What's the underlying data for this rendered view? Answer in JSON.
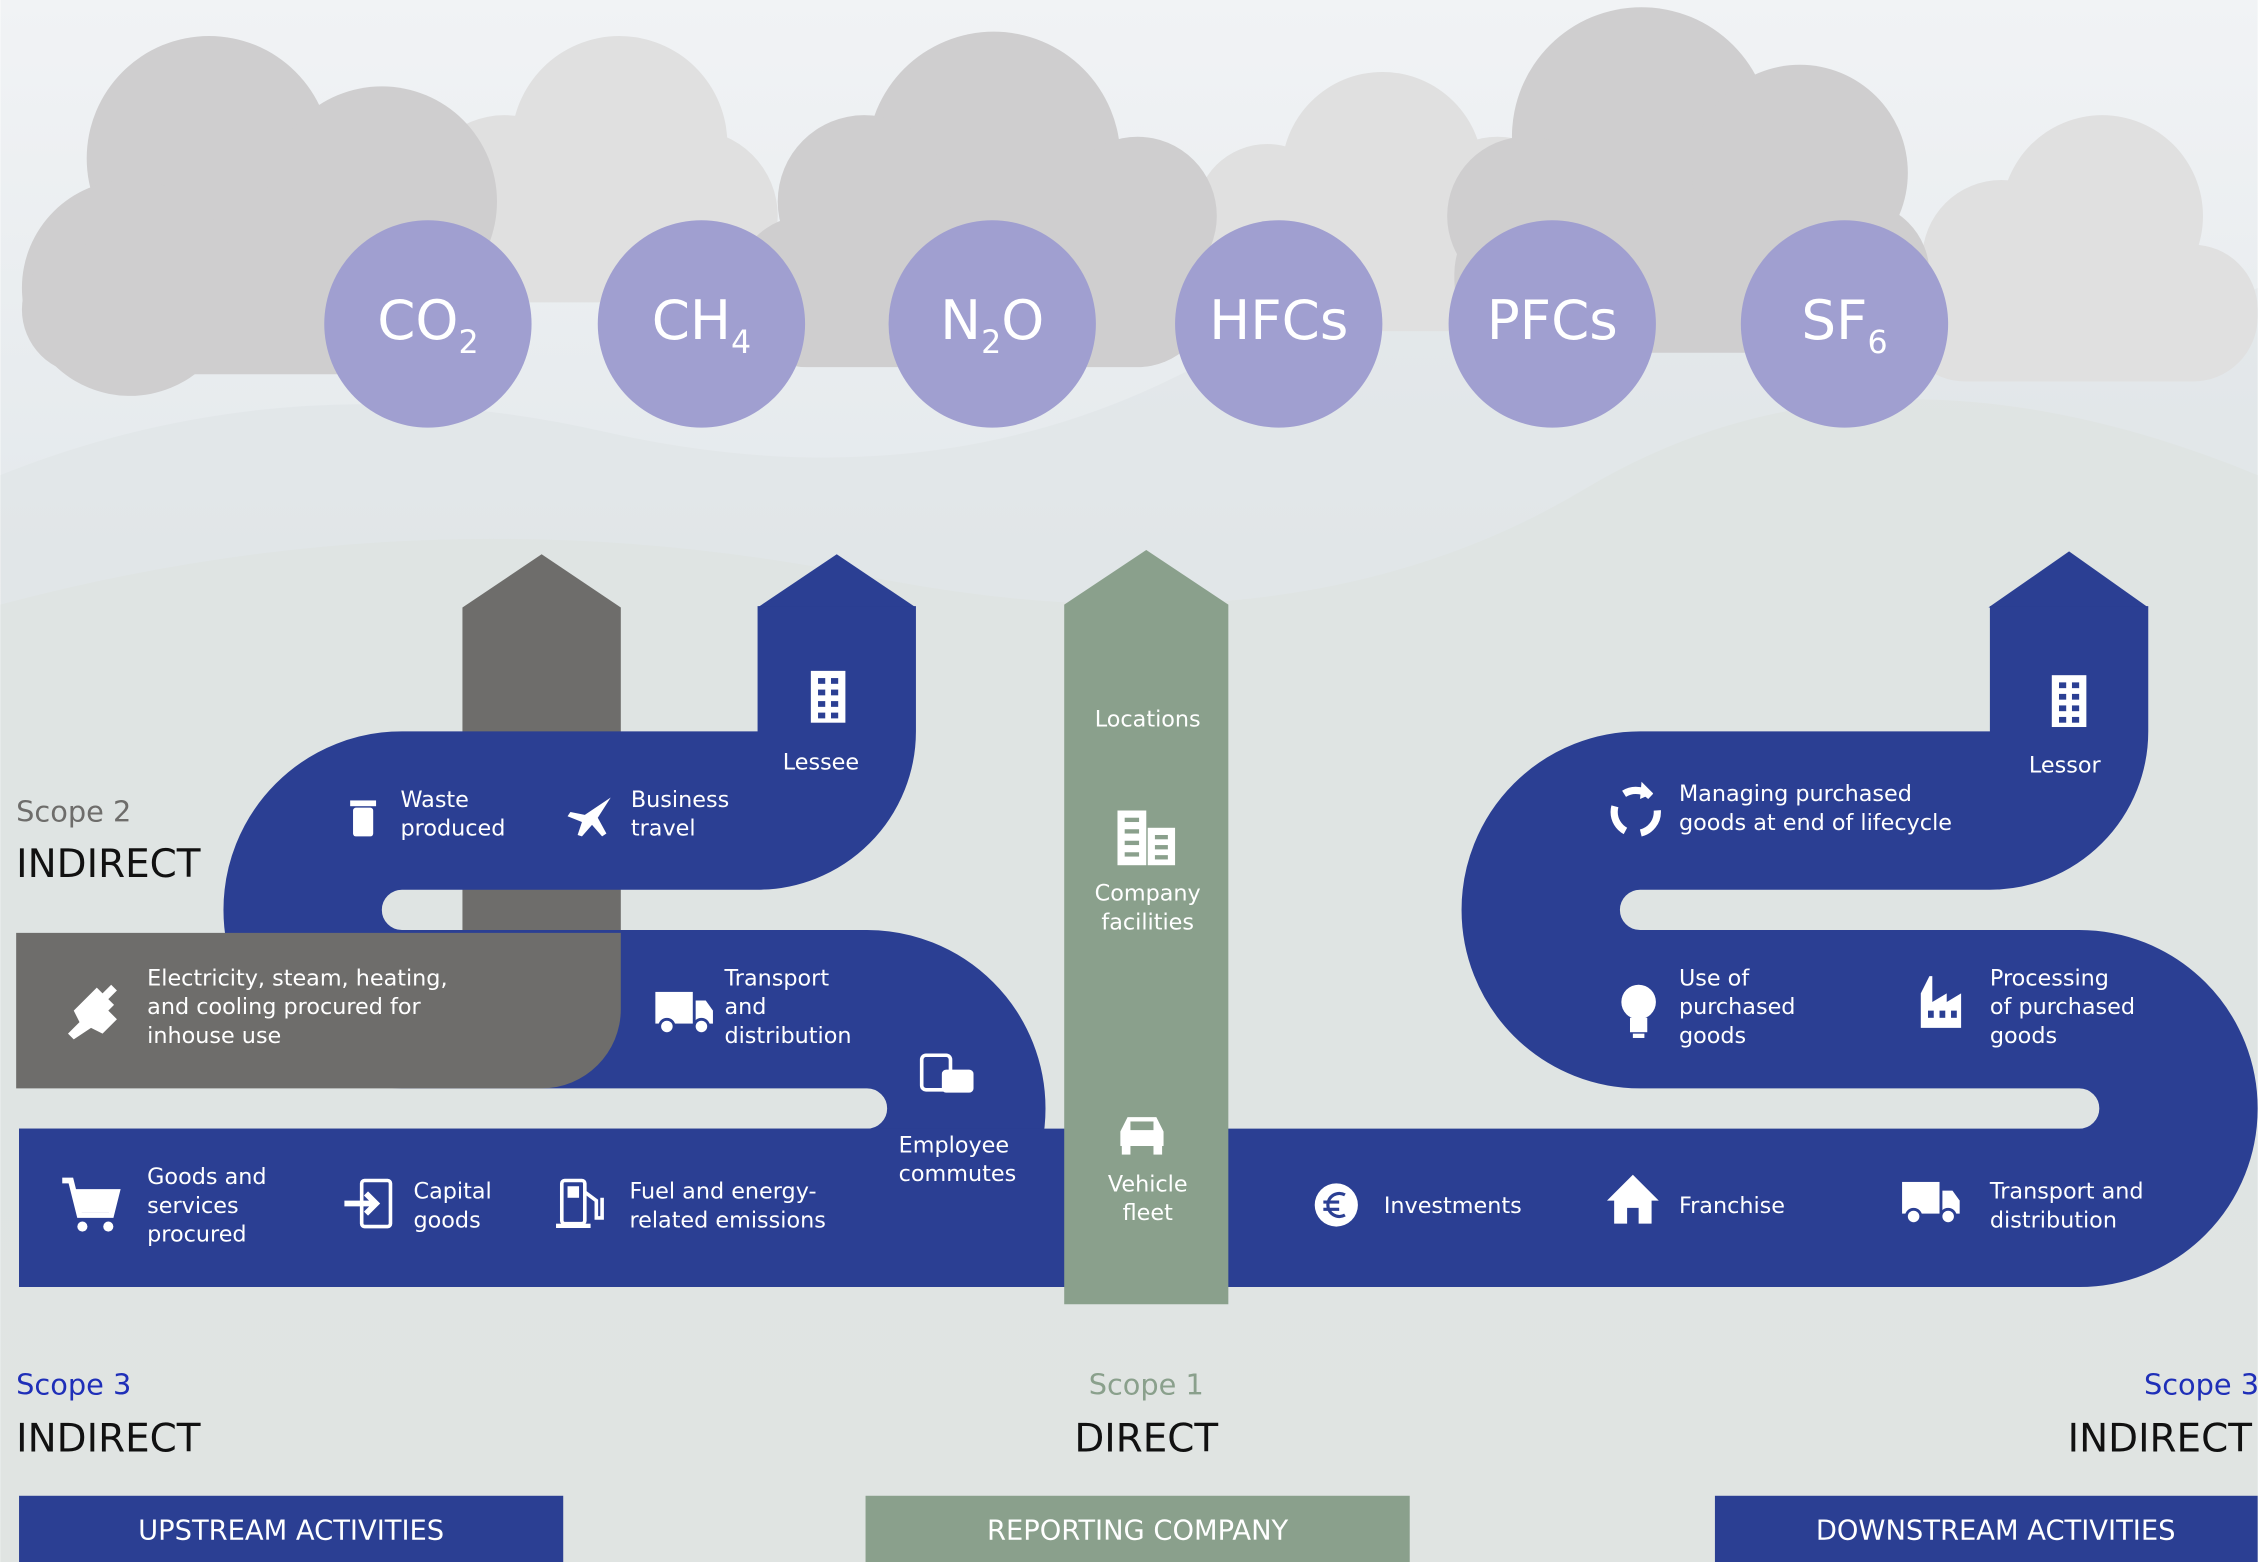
{
  "gases": [
    {
      "text": "CO",
      "subscript": "2"
    },
    {
      "text": "CH",
      "subscript": "4"
    },
    {
      "text": "N",
      "subscript": "2",
      "suffix": "O"
    },
    {
      "text": "HFCs"
    },
    {
      "text": "PFCs"
    },
    {
      "text": "SF",
      "subscript": "6"
    }
  ],
  "scopes": [
    {
      "label": "Scope 2",
      "kind": "INDIRECT"
    },
    {
      "label": "Scope 3",
      "kind": "INDIRECT"
    },
    {
      "label": "Scope 1",
      "kind": "DIRECT"
    },
    {
      "label": "Scope 3",
      "kind": "INDIRECT"
    }
  ],
  "items": [
    {
      "lines": [
        "Waste",
        "produced"
      ]
    },
    {
      "lines": [
        "Business",
        "travel"
      ]
    },
    {
      "lines": [
        "Lessee"
      ]
    },
    {
      "lines": [
        "Electricity, steam, heating,",
        "and cooling procured for",
        "inhouse use"
      ]
    },
    {
      "lines": [
        "Transport",
        "and",
        "distribution"
      ]
    },
    {
      "lines": [
        "Employee",
        "commutes"
      ]
    },
    {
      "lines": [
        "Goods and",
        "services",
        "procured"
      ]
    },
    {
      "lines": [
        "Capital",
        "goods"
      ]
    },
    {
      "lines": [
        "Fuel and energy-",
        "related emissions"
      ]
    },
    {
      "lines": [
        "Locations"
      ]
    },
    {
      "lines": [
        "Company",
        "facilities"
      ]
    },
    {
      "lines": [
        "Vehicle",
        "fleet"
      ]
    },
    {
      "lines": [
        "Managing purchased",
        "goods at end of lifecycle"
      ]
    },
    {
      "lines": [
        "Lessor"
      ]
    },
    {
      "lines": [
        "Use of",
        "purchased",
        "goods"
      ]
    },
    {
      "lines": [
        "Processing",
        "of purchased",
        "goods"
      ]
    },
    {
      "lines": [
        "Investments"
      ]
    },
    {
      "lines": [
        "Franchise"
      ]
    },
    {
      "lines": [
        "Transport and",
        "distribution"
      ]
    }
  ],
  "footer": [
    "UPSTREAM ACTIVITIES",
    "REPORTING COMPANY",
    "DOWNSTREAM ACTIVITIES"
  ]
}
